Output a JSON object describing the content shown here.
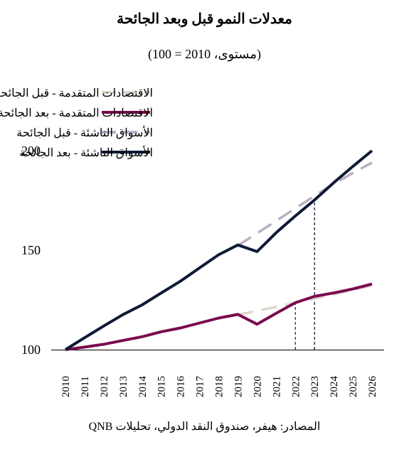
{
  "chart_data": {
    "type": "line",
    "title": "معدلات النمو قبل وبعد الجائحة",
    "subtitle": "(مستوى، 2010 = 100)",
    "source": "المصادر: هيفر، صندوق النقد الدولي، تحليلات QNB",
    "x": [
      2010,
      2011,
      2012,
      2013,
      2014,
      2015,
      2016,
      2017,
      2018,
      2019,
      2020,
      2021,
      2022,
      2023,
      2024,
      2025,
      2026
    ],
    "ylim": [
      100,
      200
    ],
    "yticks": [
      100,
      150,
      200
    ],
    "legend_position": "top-center",
    "series": [
      {
        "name": "الاقتصادات المتقدمة - قبل الجائحة",
        "color": "#ded6ca",
        "dash": true,
        "x": [
          2019,
          2020,
          2021,
          2022,
          2023,
          2024,
          2025,
          2026
        ],
        "values": [
          117.5,
          119.5,
          121.5,
          123.6,
          125.7,
          127.8,
          130.0,
          132.2
        ]
      },
      {
        "name": "الاقتصادات المتقدمة - بعد الجائحة",
        "color": "#7a0b4e",
        "dash": false,
        "x": [
          2010,
          2011,
          2012,
          2013,
          2014,
          2015,
          2016,
          2017,
          2018,
          2019,
          2020,
          2021,
          2022,
          2023,
          2024,
          2025,
          2026
        ],
        "values": [
          100,
          101.3,
          102.7,
          104.6,
          106.5,
          109.0,
          110.9,
          113.4,
          115.9,
          117.7,
          112.8,
          118.3,
          123.6,
          126.8,
          128.5,
          130.5,
          133.0
        ]
      },
      {
        "name": "الأسواق الناشئة - قبل الجائحة",
        "color": "#b7afc3",
        "dash": true,
        "x": [
          2019,
          2020,
          2021,
          2022,
          2023,
          2024,
          2025,
          2026
        ],
        "values": [
          152.3,
          158.5,
          164.7,
          171.0,
          177.3,
          183.3,
          188.8,
          194.0
        ]
      },
      {
        "name": "الأسواق الناشئة - بعد الجائحة",
        "color": "#0e1a36",
        "dash": false,
        "x": [
          2010,
          2011,
          2012,
          2013,
          2014,
          2015,
          2016,
          2017,
          2018,
          2019,
          2020,
          2021,
          2022,
          2023,
          2024,
          2025,
          2026
        ],
        "values": [
          100,
          106.0,
          111.9,
          117.6,
          122.5,
          128.5,
          134.4,
          141.1,
          147.7,
          152.6,
          149.3,
          158.8,
          167.2,
          175.2,
          183.9,
          192.1,
          200.0
        ]
      }
    ],
    "annotations": [
      {
        "x": 2022,
        "y": 123.6,
        "color": "#7a0b4e",
        "dash": true
      },
      {
        "x": 2023,
        "y": 175.2,
        "color": "#0e1a36",
        "dash": true
      }
    ]
  }
}
